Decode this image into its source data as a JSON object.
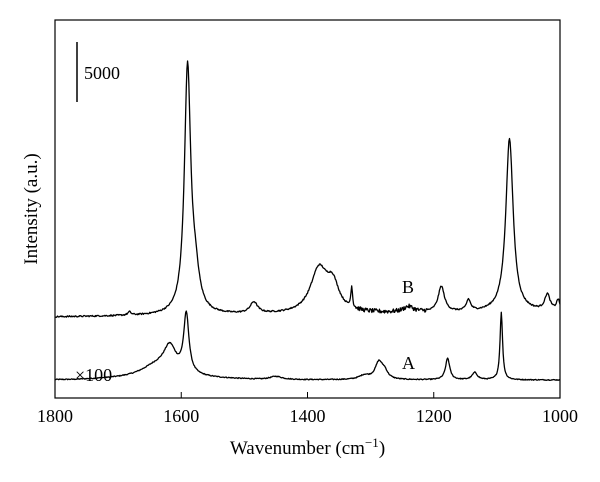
{
  "chart_data": {
    "type": "line",
    "title": "",
    "xlabel": "Wavenumber (cm",
    "xlabel_superscript": "−1",
    "xlabel_close": ")",
    "ylabel": "Intensity (a.u.)",
    "xlim": [
      1800,
      1000
    ],
    "x_reversed": true,
    "x_ticks": [
      "1800",
      "1600",
      "1400",
      "1200",
      "1000"
    ],
    "y_ticks": [],
    "scale_bar_label": "5000",
    "scale_bar_value": 5000,
    "grid": false,
    "legend": "none",
    "line_color": "#000000",
    "annotations": [
      "B",
      "A",
      "×100"
    ],
    "series": [
      {
        "name": "A",
        "baseline": 0,
        "peaks": [
          [
            1640,
            1400,
            30
          ],
          [
            1618,
            3200,
            12
          ],
          [
            1592,
            7400,
            5
          ],
          [
            1450,
            400,
            12
          ],
          [
            1310,
            500,
            10
          ],
          [
            1287,
            2100,
            7
          ],
          [
            1278,
            900,
            6
          ],
          [
            1178,
            2700,
            4
          ],
          [
            1135,
            900,
            5
          ],
          [
            1093,
            8400,
            2.4
          ]
        ]
      },
      {
        "name": "B",
        "baseline": 4800,
        "peaks": [
          [
            1682,
            400,
            3
          ],
          [
            1590,
            30500,
            6
          ],
          [
            1578,
            4000,
            8
          ],
          [
            1485,
            1400,
            7
          ],
          [
            1382,
            5400,
            16
          ],
          [
            1360,
            3200,
            12
          ],
          [
            1330,
            2600,
            1.6
          ],
          [
            1240,
            700,
            10
          ],
          [
            1188,
            3200,
            6
          ],
          [
            1145,
            1400,
            4
          ],
          [
            1080,
            21700,
            7
          ],
          [
            1020,
            2000,
            5
          ],
          [
            1003,
            1300,
            3
          ]
        ]
      }
    ]
  }
}
